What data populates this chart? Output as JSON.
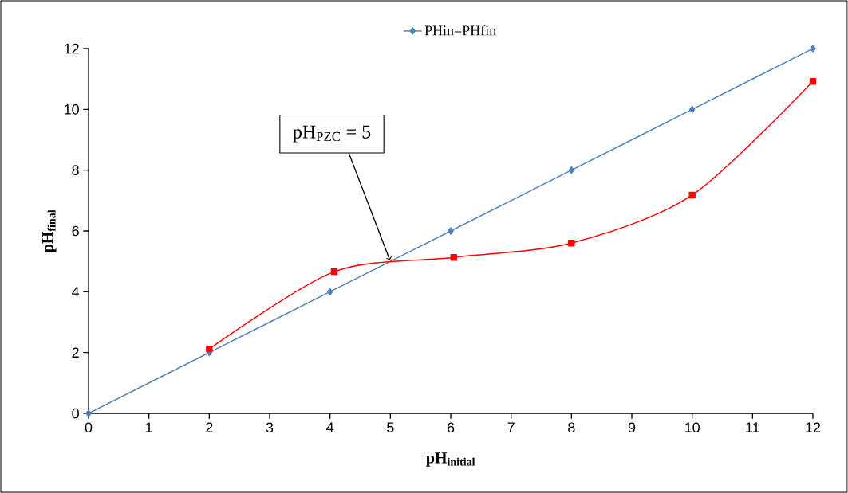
{
  "chart_data": {
    "type": "line",
    "xlabel": "pH$_{initial}$",
    "ylabel": "pH$_{final}$",
    "xlim": [
      0,
      12
    ],
    "xticks": [
      0,
      1,
      2,
      3,
      4,
      5,
      6,
      7,
      8,
      9,
      10,
      11,
      12
    ],
    "ylim": [
      0,
      12
    ],
    "yticks": [
      0,
      2,
      4,
      6,
      8,
      10,
      12
    ],
    "grid": false,
    "legend": "top",
    "annotations": [
      {
        "text": "pH$_{PZC}$ = 5",
        "x": 5,
        "y": 5
      }
    ],
    "series": [
      {
        "name": "PHin=PHfin",
        "color": "#4f81bd",
        "marker": "diamond",
        "x": [
          0,
          2,
          4,
          6,
          8,
          10,
          12
        ],
        "values": [
          0,
          2,
          4,
          6,
          8,
          10,
          12
        ]
      },
      {
        "color": "#ff0000",
        "marker": "square",
        "x": [
          2,
          4.07,
          6.05,
          8,
          10,
          12
        ],
        "values": [
          2.12,
          4.66,
          5.13,
          5.6,
          7.18,
          10.92
        ]
      }
    ]
  }
}
